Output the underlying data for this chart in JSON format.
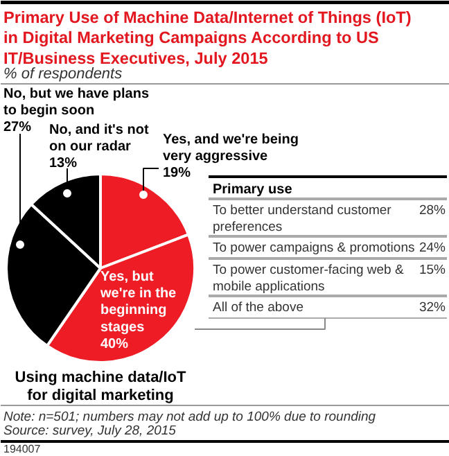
{
  "chart_data": [
    {
      "type": "pie",
      "title": "Primary Use of Machine Data/Internet of Things (IoT) in Digital Marketing Campaigns According to US IT/Business Executives, July 2015",
      "subtitle": "% of respondents",
      "categories": [
        "Yes, and we're being very aggressive",
        "Yes, but we're in the beginning stages",
        "No, but we have plans to begin soon",
        "No, and it's not on our radar"
      ],
      "values": [
        19,
        40,
        27,
        13
      ],
      "colors": [
        "#ee1c25",
        "#ee1c25",
        "#000000",
        "#000000"
      ],
      "value_labels": [
        "19%",
        "40%",
        "27%",
        "13%"
      ],
      "annotations": [
        "Using machine data/IoT for digital marketing",
        "Note: n=501; numbers may not add up to 100% due to rounding",
        "Source: survey, July 28, 2015",
        "194007"
      ]
    },
    {
      "type": "other",
      "title": "Primary use",
      "categories": [
        "To better understand customer preferences",
        "To power campaigns & promotions",
        "To power customer-facing web & mobile applications",
        "All of the above"
      ],
      "value_labels": [
        "28%",
        "24%",
        "15%",
        "32%"
      ]
    }
  ]
}
